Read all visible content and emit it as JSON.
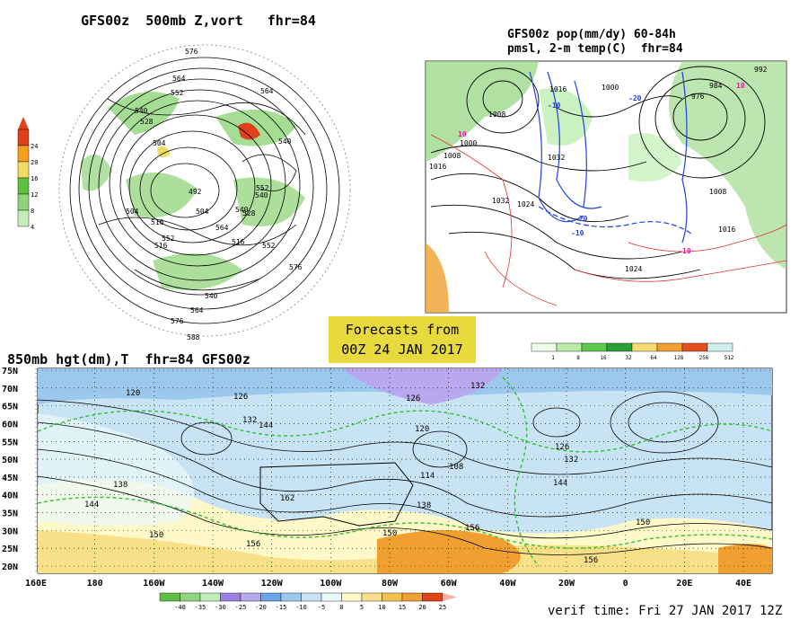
{
  "panel_500mb": {
    "title": "GFS00z  500mb Z,vort   fhr=84",
    "colorbar": {
      "labels": [
        "24",
        "20",
        "16",
        "12",
        "8",
        "4"
      ],
      "colors": [
        "#e0401a",
        "#f5a020",
        "#f0dc60",
        "#5fc040",
        "#8fd47a",
        "#c5ecb8"
      ]
    },
    "contour_labels": [
      "576",
      "564",
      "552",
      "540",
      "540",
      "552",
      "540",
      "528",
      "504",
      "492",
      "504",
      "516",
      "540",
      "516",
      "504",
      "552",
      "552",
      "564",
      "576",
      "552",
      "564",
      "540",
      "528",
      "516",
      "576",
      "588"
    ]
  },
  "panel_precip": {
    "title_line1": "GFS00z pop(mm/dy) 60-84h",
    "title_line2": "pmsl, 2-m temp(C)  fhr=84",
    "labels": [
      "992",
      "1000",
      "1008",
      "1016",
      "1024",
      "1032",
      "1032",
      "1008",
      "1016",
      "1024",
      "976",
      "984",
      "1008",
      "1016",
      "10",
      "10",
      "10",
      "-10",
      "-10",
      "-20",
      "-20"
    ],
    "colorbar": {
      "labels": [
        "1",
        "8",
        "16",
        "32",
        "64",
        "128",
        "256",
        "512"
      ],
      "colors": [
        "#eefce8",
        "#b8eca8",
        "#5fc850",
        "#2e9e38",
        "#f4dc70",
        "#f0a030",
        "#e05020",
        "#d0f0f0"
      ]
    }
  },
  "banner": {
    "line1": "Forecasts from",
    "line2": "00Z 24 JAN 2017"
  },
  "panel_850mb": {
    "title": "850mb hgt(dm),T  fhr=84 GFS00z",
    "lat_labels": [
      "75N",
      "70N",
      "65N",
      "60N",
      "55N",
      "50N",
      "45N",
      "40N",
      "35N",
      "30N",
      "25N",
      "20N"
    ],
    "lon_labels": [
      "160E",
      "180",
      "160W",
      "140W",
      "120W",
      "100W",
      "80W",
      "60W",
      "40W",
      "20W",
      "0",
      "20E",
      "40E"
    ],
    "contour_labels": [
      "120",
      "126",
      "132",
      "138",
      "144",
      "150",
      "156",
      "162",
      "132",
      "126",
      "120",
      "114",
      "108",
      "144",
      "150",
      "156",
      "126",
      "132",
      "138",
      "144",
      "150",
      "156"
    ],
    "colorbar": {
      "labels": [
        "-40",
        "-35",
        "-30",
        "-25",
        "-20",
        "-15",
        "-10",
        "-5",
        "0",
        "5",
        "10",
        "15",
        "20",
        "25"
      ],
      "colors": [
        "#5ec040",
        "#8ed67a",
        "#c0ecb8",
        "#9c80e0",
        "#b8a8ee",
        "#6aa6e8",
        "#9cc8ee",
        "#c8e4f4",
        "#eafafa",
        "#fff8c8",
        "#f8e088",
        "#f4c050",
        "#f0a030",
        "#e04418"
      ]
    },
    "verif_time": "verif time: Fri 27 JAN 2017 12Z"
  }
}
